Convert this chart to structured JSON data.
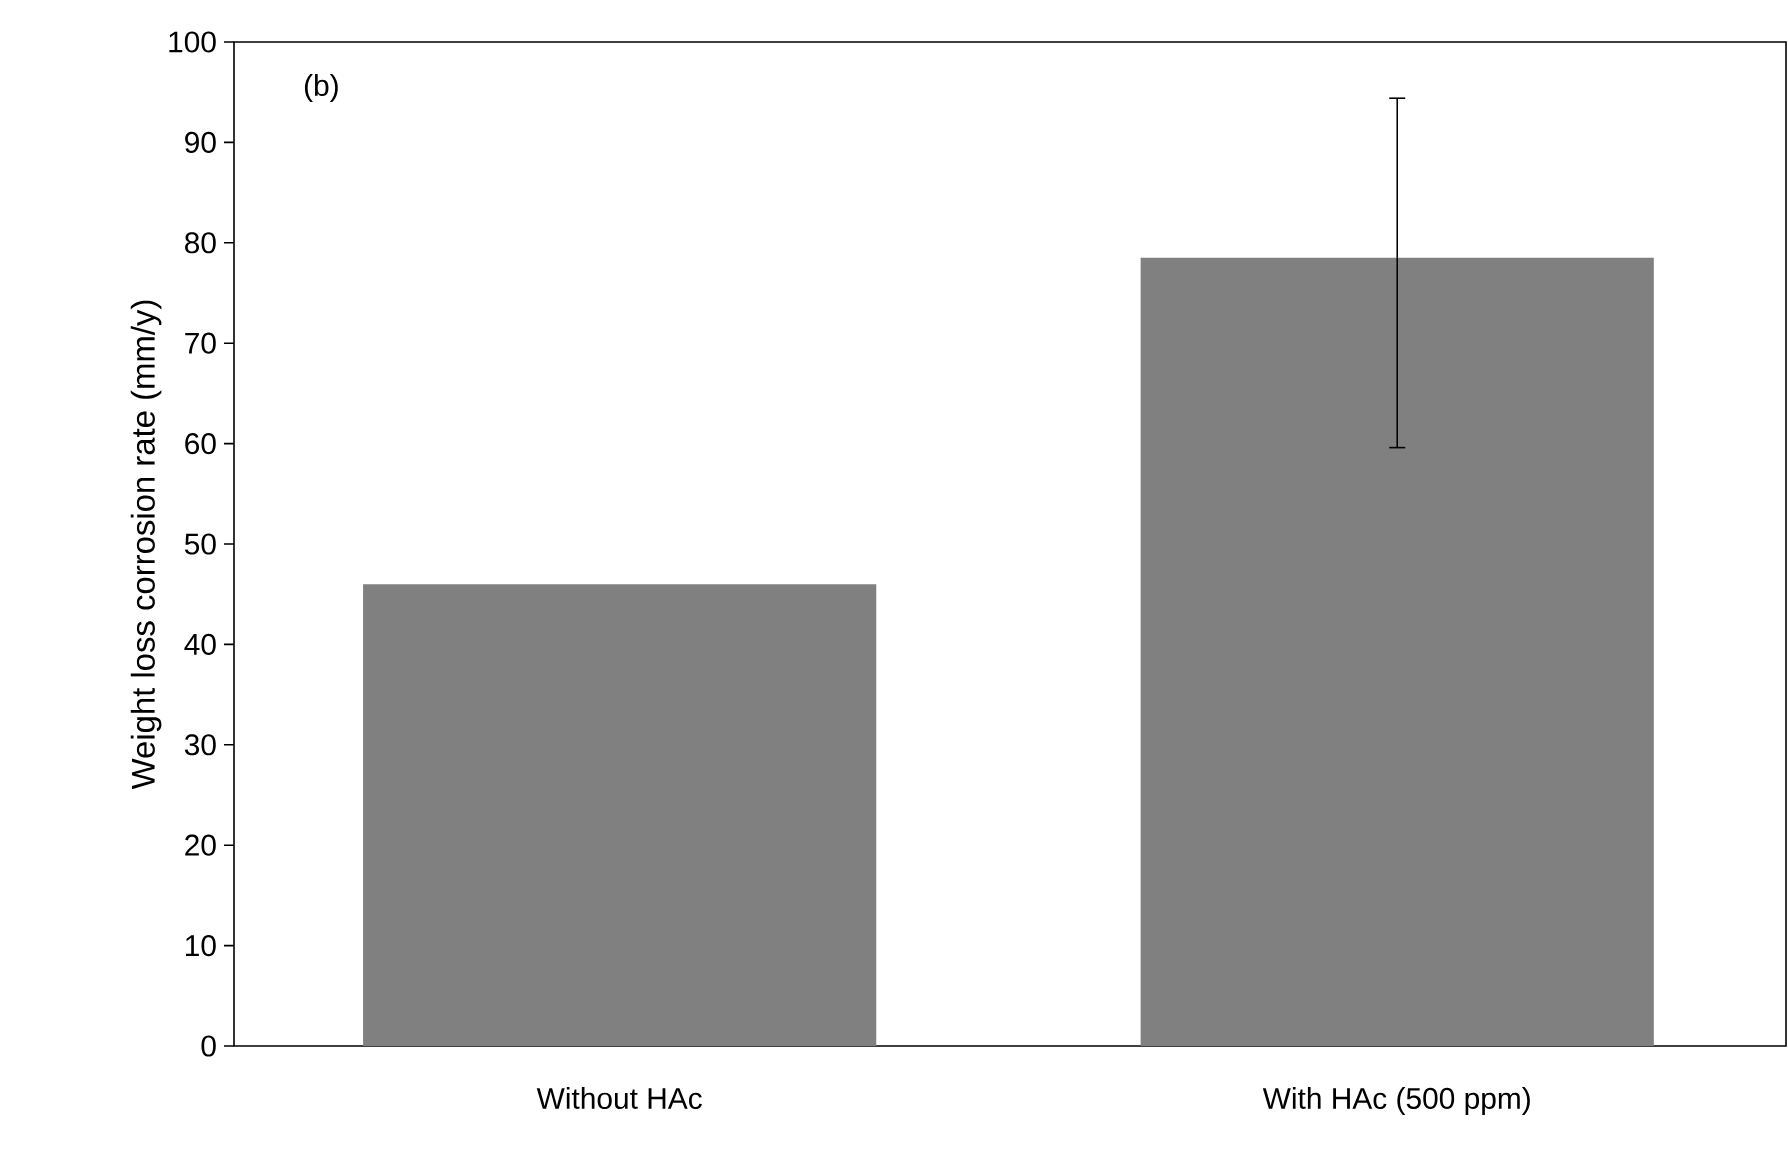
{
  "chart_data": {
    "type": "bar",
    "ylabel": "Weight loss corrosion rate (mm/y)",
    "categories": [
      "Without HAc",
      "With HAc (500 ppm)"
    ],
    "values": [
      46,
      78.5
    ],
    "errors": [
      null,
      [
        59.6,
        94.4
      ]
    ],
    "color": "#808080",
    "ylim": [
      0,
      100
    ],
    "yticks": [
      0,
      10,
      20,
      30,
      40,
      50,
      60,
      70,
      80,
      90,
      100
    ],
    "annotations": [
      "(b)"
    ]
  }
}
